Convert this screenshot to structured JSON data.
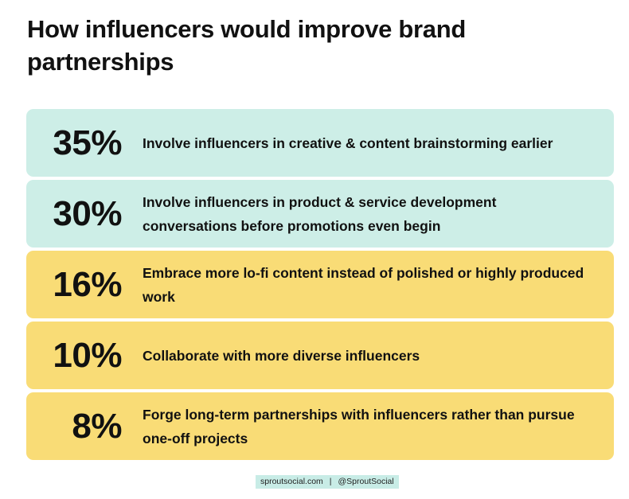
{
  "chart_data": {
    "type": "bar",
    "title": "How influencers would improve brand partnerships",
    "categories": [
      "Involve influencers in creative & content brainstorming earlier",
      "Involve influencers in product & service development conversations before promotions even begin",
      "Embrace more lo-fi content instead of polished or highly produced work",
      "Collaborate with more diverse influencers",
      "Forge long-term partnerships with influencers rather than pursue one-off projects"
    ],
    "values": [
      35,
      30,
      16,
      10,
      8
    ],
    "value_labels": [
      "35%",
      "30%",
      "16%",
      "10%",
      "8%"
    ],
    "colors": [
      "#cdeee7",
      "#cdeee7",
      "#f9dc76",
      "#f9dc76",
      "#f9dc76"
    ]
  },
  "footer": {
    "site": "sproutsocial.com",
    "separator": "|",
    "handle": "@SproutSocial"
  }
}
